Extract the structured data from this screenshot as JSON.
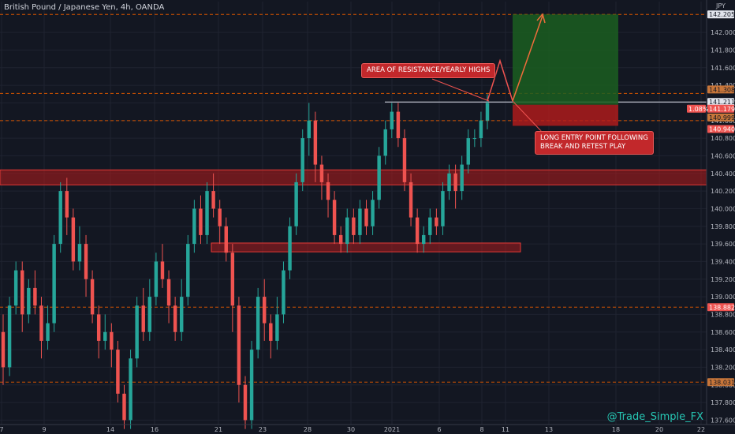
{
  "header": {
    "title": "British Pound / Japanese Yen, 4h, OANDA"
  },
  "currency": "JPY",
  "annotations": {
    "resistance_callout": "AREA OF RESISTANCE/YEARLY HIGHS",
    "entry_callout_line1": "LONG ENTRY POINT FOLLOWING",
    "entry_callout_line2": "BREAK AND RETEST PLAY"
  },
  "watermark": "@Trade_Simple_FX",
  "colors": {
    "background": "#131722",
    "bull": "#26a69a",
    "bear": "#ef5350",
    "zone": "#b71c1c",
    "profit": "#1b5e20",
    "loss": "#b71c1c",
    "dashed": "#d35400"
  },
  "price_tags": [
    {
      "value": "142.205",
      "style": "white"
    },
    {
      "value": "141.308",
      "style": "orange"
    },
    {
      "value": "141.211",
      "style": "white"
    },
    {
      "value": "141.179",
      "style": "red"
    },
    {
      "value": "140.999",
      "style": "orange"
    },
    {
      "value": "140.940",
      "style": "red"
    },
    {
      "value": "138.882",
      "style": "red"
    },
    {
      "value": "138.031",
      "style": "orange"
    }
  ],
  "position_pct": "1.08%",
  "chart_data": {
    "type": "candlestick",
    "ylim": [
      137.55,
      142.35
    ],
    "y_ticks": [
      "142.000",
      "141.800",
      "141.600",
      "141.400",
      "141.200",
      "141.000",
      "140.800",
      "140.600",
      "140.400",
      "140.200",
      "140.000",
      "139.800",
      "139.600",
      "139.400",
      "139.200",
      "139.000",
      "138.800",
      "138.600",
      "138.400",
      "138.200",
      "138.000",
      "137.800",
      "137.600"
    ],
    "x_ticks": [
      "7",
      "9",
      "14",
      "16",
      "21",
      "23",
      "28",
      "30",
      "2021",
      "6",
      "8",
      "11",
      "13",
      "18",
      "20",
      "22"
    ],
    "horizontal_levels": [
      142.205,
      141.308,
      140.999,
      138.882,
      138.031
    ],
    "resistance_zone": [
      140.27,
      140.44
    ],
    "support_zone": [
      139.51,
      139.61
    ],
    "key_level": 141.211,
    "long_position": {
      "entry": 141.179,
      "target": 142.205,
      "stop": 140.94
    },
    "candles": [
      [
        138.6,
        138.2,
        138.8,
        138.0
      ],
      [
        138.2,
        138.9,
        139.0,
        138.1
      ],
      [
        138.9,
        139.3,
        139.4,
        138.8
      ],
      [
        139.3,
        138.8,
        139.4,
        138.6
      ],
      [
        138.8,
        139.1,
        139.2,
        138.7
      ],
      [
        139.1,
        138.9,
        139.3,
        138.8
      ],
      [
        138.9,
        138.5,
        139.0,
        138.3
      ],
      [
        138.5,
        138.7,
        138.9,
        138.4
      ],
      [
        138.7,
        139.6,
        139.7,
        138.6
      ],
      [
        139.6,
        140.2,
        140.3,
        139.5
      ],
      [
        140.2,
        139.9,
        140.35,
        139.7
      ],
      [
        139.9,
        139.4,
        140.0,
        139.3
      ],
      [
        139.4,
        139.6,
        139.8,
        139.3
      ],
      [
        139.6,
        139.2,
        139.7,
        139.0
      ],
      [
        139.2,
        138.8,
        139.3,
        138.7
      ],
      [
        138.8,
        138.5,
        138.9,
        138.3
      ],
      [
        138.5,
        138.6,
        138.8,
        138.4
      ],
      [
        138.6,
        138.4,
        138.7,
        138.2
      ],
      [
        138.4,
        137.9,
        138.5,
        137.8
      ],
      [
        137.9,
        137.6,
        138.0,
        137.5
      ],
      [
        137.6,
        138.3,
        138.4,
        137.5
      ],
      [
        138.3,
        138.9,
        139.0,
        138.2
      ],
      [
        138.9,
        138.6,
        139.1,
        138.5
      ],
      [
        138.6,
        139.0,
        139.2,
        138.5
      ],
      [
        139.0,
        139.4,
        139.5,
        138.9
      ],
      [
        139.4,
        139.2,
        139.6,
        139.1
      ],
      [
        139.2,
        138.9,
        139.3,
        138.7
      ],
      [
        138.9,
        138.6,
        139.0,
        138.5
      ],
      [
        138.6,
        139.0,
        139.2,
        138.5
      ],
      [
        139.0,
        139.6,
        139.7,
        138.9
      ],
      [
        139.6,
        140.0,
        140.1,
        139.5
      ],
      [
        140.0,
        139.7,
        140.15,
        139.6
      ],
      [
        139.7,
        140.2,
        140.3,
        139.6
      ],
      [
        140.2,
        140.0,
        140.4,
        139.9
      ],
      [
        140.0,
        139.8,
        140.1,
        139.6
      ],
      [
        139.8,
        139.5,
        139.9,
        139.4
      ],
      [
        139.5,
        138.9,
        139.6,
        138.6
      ],
      [
        138.9,
        138.0,
        139.0,
        137.8
      ],
      [
        138.0,
        137.6,
        138.1,
        137.5
      ],
      [
        137.6,
        138.4,
        138.5,
        137.5
      ],
      [
        138.4,
        139.0,
        139.1,
        138.3
      ],
      [
        139.0,
        138.7,
        139.2,
        138.5
      ],
      [
        138.7,
        138.5,
        138.8,
        138.3
      ],
      [
        138.5,
        138.8,
        139.0,
        138.4
      ],
      [
        138.8,
        139.3,
        139.4,
        138.7
      ],
      [
        139.3,
        139.8,
        139.9,
        139.2
      ],
      [
        139.8,
        140.3,
        140.4,
        139.7
      ],
      [
        140.3,
        140.8,
        140.9,
        140.2
      ],
      [
        140.8,
        141.0,
        141.2,
        140.6
      ],
      [
        141.0,
        140.5,
        141.1,
        140.3
      ],
      [
        140.5,
        140.3,
        140.6,
        140.1
      ],
      [
        140.3,
        140.1,
        140.4,
        139.9
      ],
      [
        140.1,
        139.7,
        140.2,
        139.6
      ],
      [
        139.7,
        139.6,
        139.8,
        139.5
      ],
      [
        139.6,
        139.9,
        140.0,
        139.5
      ],
      [
        139.9,
        139.7,
        140.0,
        139.6
      ],
      [
        139.7,
        140.0,
        140.1,
        139.6
      ],
      [
        140.0,
        139.8,
        140.1,
        139.7
      ],
      [
        139.8,
        140.1,
        140.2,
        139.7
      ],
      [
        140.1,
        140.6,
        140.7,
        140.0
      ],
      [
        140.6,
        140.9,
        141.0,
        140.5
      ],
      [
        140.9,
        141.1,
        141.2,
        140.8
      ],
      [
        141.1,
        140.8,
        141.2,
        140.7
      ],
      [
        140.8,
        140.3,
        140.9,
        140.2
      ],
      [
        140.3,
        139.9,
        140.4,
        139.8
      ],
      [
        139.9,
        139.6,
        140.0,
        139.5
      ],
      [
        139.6,
        139.7,
        139.8,
        139.5
      ],
      [
        139.7,
        139.9,
        140.0,
        139.6
      ],
      [
        139.9,
        139.8,
        140.0,
        139.7
      ],
      [
        139.8,
        140.2,
        140.3,
        139.7
      ],
      [
        140.2,
        140.4,
        140.5,
        140.1
      ],
      [
        140.4,
        140.2,
        140.5,
        140.0
      ],
      [
        140.2,
        140.5,
        140.6,
        140.1
      ],
      [
        140.5,
        140.8,
        140.9,
        140.4
      ],
      [
        140.8,
        140.8,
        140.9,
        140.7
      ],
      [
        140.8,
        141.0,
        141.1,
        140.7
      ],
      [
        141.0,
        141.2,
        141.3,
        140.9
      ]
    ]
  }
}
